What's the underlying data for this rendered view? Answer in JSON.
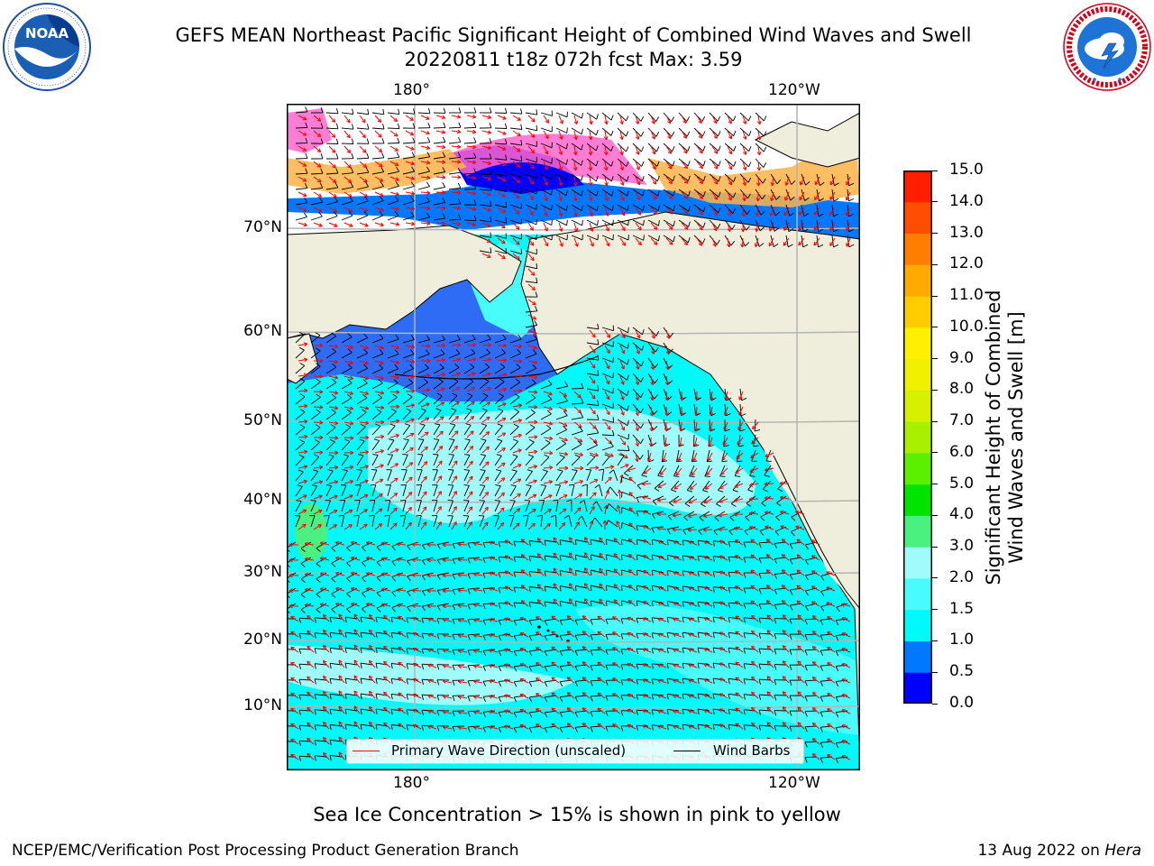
{
  "header": {
    "title_line1": "GEFS MEAN Northeast Pacific Significant Height of Combined Wind Waves and Swell",
    "title_line2": "20220811 t18z 072h fcst   Max: 3.59"
  },
  "logos": {
    "noaa_text": "NOAA",
    "noaa_ring_text": "NATIONAL OCEANIC AND ATMOSPHERIC ADMINISTRATION · U.S. DEPARTMENT OF COMMERCE",
    "nws_ring_text": "NATIONAL WEATHER SERVICE"
  },
  "map": {
    "lon_labels_top": [
      "180°",
      "120°W"
    ],
    "lon_labels_bottom": [
      "180°",
      "120°W"
    ],
    "lat_labels": [
      "70°N",
      "60°N",
      "50°N",
      "40°N",
      "30°N",
      "20°N",
      "10°N"
    ],
    "max_value": 3.59,
    "colors": {
      "land": "#efeddc",
      "grid": "#b4b4b4",
      "coast": "#000000",
      "wave_dir": "#ff0000",
      "wind_barb": "#000000"
    }
  },
  "legend": {
    "wave_label": "Primary Wave Direction (unscaled)",
    "wind_label": "Wind Barbs"
  },
  "colorbar": {
    "title_line1": "Significant Height of Combined",
    "title_line2": "Wind Waves and Swell [m]",
    "ticks": [
      "0.0",
      "0.5",
      "1.0",
      "1.5",
      "2.0",
      "3.0",
      "4.0",
      "5.0",
      "6.0",
      "7.0",
      "8.0",
      "9.0",
      "10.0",
      "11.0",
      "12.0",
      "13.0",
      "14.0",
      "15.0"
    ],
    "colors": [
      "#0000ff",
      "#0078ff",
      "#00fafa",
      "#48fcfc",
      "#a0fcfa",
      "#4af080",
      "#00e400",
      "#5af000",
      "#a8f000",
      "#d6f000",
      "#f0f000",
      "#fff000",
      "#ffcc00",
      "#ffaa00",
      "#ff7e00",
      "#ff4e00",
      "#ff1e00"
    ]
  },
  "footer": {
    "note": "Sea Ice Concentration > 15% is shown in pink to yellow",
    "credit": "NCEP/EMC/Verification Post Processing Product Generation Branch",
    "date": "13 Aug 2022 on ",
    "machine": "Hera"
  }
}
